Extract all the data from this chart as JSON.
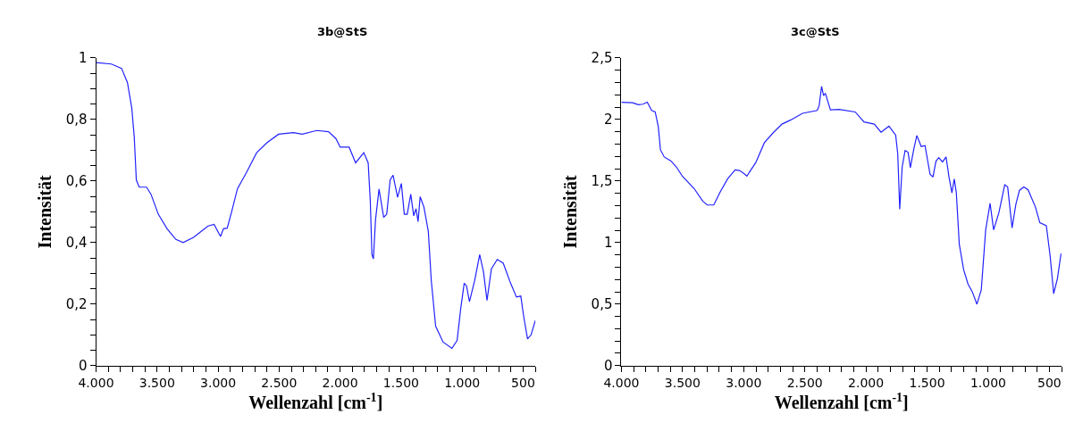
{
  "chart_data": [
    {
      "type": "line",
      "title": "3b@StS",
      "xlabel": "Wellenzahl [cm$^{-1}$]",
      "ylabel": "Intensität",
      "x": [
        4000,
        3875,
        3791,
        3743,
        3707,
        3687,
        3670,
        3646,
        3586,
        3550,
        3490,
        3418,
        3346,
        3286,
        3201,
        3081,
        3033,
        2980,
        2956,
        2925,
        2889,
        2841,
        2768,
        2684,
        2600,
        2504,
        2383,
        2311,
        2191,
        2095,
        2035,
        1999,
        1926,
        1873,
        1806,
        1770,
        1753,
        1739,
        1727,
        1710,
        1681,
        1643,
        1618,
        1590,
        1566,
        1529,
        1498,
        1474,
        1450,
        1421,
        1397,
        1378,
        1361,
        1344,
        1313,
        1277,
        1253,
        1217,
        1157,
        1084,
        1041,
        1012,
        983,
        964,
        940,
        897,
        856,
        825,
        796,
        760,
        712,
        663,
        603,
        555,
        519,
        498,
        464,
        435,
        400
      ],
      "series": [
        {
          "color": "#2222ff",
          "values": [
            0.985,
            0.98,
            0.966,
            0.92,
            0.836,
            0.743,
            0.603,
            0.58,
            0.58,
            0.557,
            0.492,
            0.445,
            0.41,
            0.4,
            0.417,
            0.454,
            0.459,
            0.42,
            0.445,
            0.447,
            0.5,
            0.575,
            0.627,
            0.692,
            0.724,
            0.752,
            0.757,
            0.752,
            0.764,
            0.76,
            0.738,
            0.71,
            0.71,
            0.659,
            0.692,
            0.659,
            0.538,
            0.361,
            0.347,
            0.473,
            0.574,
            0.482,
            0.492,
            0.603,
            0.619,
            0.547,
            0.592,
            0.492,
            0.492,
            0.557,
            0.487,
            0.51,
            0.468,
            0.549,
            0.515,
            0.436,
            0.277,
            0.128,
            0.077,
            0.056,
            0.082,
            0.184,
            0.268,
            0.259,
            0.208,
            0.277,
            0.361,
            0.305,
            0.212,
            0.315,
            0.345,
            0.333,
            0.268,
            0.223,
            0.226,
            0.166,
            0.087,
            0.1,
            0.147
          ]
        }
      ],
      "xlim": [
        4000,
        400
      ],
      "ylim": [
        0,
        1
      ],
      "xticks": [
        {
          "value": 4000,
          "label": "4.000"
        },
        {
          "value": 3900,
          "label": null
        },
        {
          "value": 3800,
          "label": null
        },
        {
          "value": 3700,
          "label": null
        },
        {
          "value": 3600,
          "label": null
        },
        {
          "value": 3500,
          "label": "3.500"
        },
        {
          "value": 3400,
          "label": null
        },
        {
          "value": 3300,
          "label": null
        },
        {
          "value": 3200,
          "label": null
        },
        {
          "value": 3100,
          "label": null
        },
        {
          "value": 3000,
          "label": "3.000"
        },
        {
          "value": 2900,
          "label": null
        },
        {
          "value": 2800,
          "label": null
        },
        {
          "value": 2700,
          "label": null
        },
        {
          "value": 2600,
          "label": null
        },
        {
          "value": 2500,
          "label": "2.500"
        },
        {
          "value": 2400,
          "label": null
        },
        {
          "value": 2300,
          "label": null
        },
        {
          "value": 2200,
          "label": null
        },
        {
          "value": 2100,
          "label": null
        },
        {
          "value": 2000,
          "label": "2.000"
        },
        {
          "value": 1900,
          "label": null
        },
        {
          "value": 1800,
          "label": null
        },
        {
          "value": 1700,
          "label": null
        },
        {
          "value": 1600,
          "label": null
        },
        {
          "value": 1500,
          "label": "1.500"
        },
        {
          "value": 1400,
          "label": null
        },
        {
          "value": 1300,
          "label": null
        },
        {
          "value": 1200,
          "label": null
        },
        {
          "value": 1100,
          "label": null
        },
        {
          "value": 1000,
          "label": "1.000"
        },
        {
          "value": 900,
          "label": null
        },
        {
          "value": 800,
          "label": null
        },
        {
          "value": 700,
          "label": null
        },
        {
          "value": 600,
          "label": null
        },
        {
          "value": 500,
          "label": "500"
        },
        {
          "value": 400,
          "label": null
        }
      ],
      "yticks": [
        0,
        {
          "value": 0.05,
          "label": null
        },
        {
          "value": 0.1,
          "label": null
        },
        {
          "value": 0.15,
          "label": null
        },
        {
          "value": 0.2,
          "label": "0,2"
        },
        {
          "value": 0.25,
          "label": null
        },
        {
          "value": 0.3,
          "label": null
        },
        {
          "value": 0.35,
          "label": null
        },
        {
          "value": 0.4,
          "label": "0,4"
        },
        {
          "value": 0.45,
          "label": null
        },
        {
          "value": 0.5,
          "label": null
        },
        {
          "value": 0.55,
          "label": null
        },
        {
          "value": 0.6,
          "label": "0,6"
        },
        {
          "value": 0.65,
          "label": null
        },
        {
          "value": 0.7,
          "label": null
        },
        {
          "value": 0.75,
          "label": null
        },
        {
          "value": 0.8,
          "label": "0,8"
        },
        {
          "value": 0.85,
          "label": null
        },
        {
          "value": 0.9,
          "label": null
        },
        {
          "value": 0.95,
          "label": null
        },
        1
      ]
    },
    {
      "type": "line",
      "title": "3c@StS",
      "xlabel": "Wellenzahl [cm$^{-1}$]",
      "ylabel": "Intensität",
      "x": [
        4000,
        3909,
        3861,
        3825,
        3789,
        3753,
        3724,
        3698,
        3681,
        3650,
        3597,
        3550,
        3502,
        3406,
        3334,
        3298,
        3245,
        3190,
        3130,
        3070,
        3034,
        2998,
        2974,
        2946,
        2902,
        2831,
        2759,
        2687,
        2615,
        2519,
        2399,
        2383,
        2363,
        2347,
        2332,
        2291,
        2220,
        2088,
        2016,
        1932,
        1877,
        1812,
        1757,
        1740,
        1724,
        1704,
        1680,
        1656,
        1637,
        1608,
        1584,
        1548,
        1517,
        1476,
        1452,
        1428,
        1405,
        1374,
        1345,
        1321,
        1297,
        1278,
        1261,
        1237,
        1201,
        1165,
        1129,
        1093,
        1057,
        1021,
        985,
        956,
        913,
        865,
        841,
        805,
        774,
        745,
        709,
        674,
        614,
        578,
        525,
        494,
        465,
        434,
        405
      ],
      "series": [
        {
          "color": "#2222ff",
          "values": [
            2.14,
            2.136,
            2.12,
            2.124,
            2.14,
            2.073,
            2.061,
            1.938,
            1.753,
            1.695,
            1.664,
            1.613,
            1.539,
            1.439,
            1.335,
            1.305,
            1.305,
            1.416,
            1.52,
            1.59,
            1.585,
            1.56,
            1.539,
            1.583,
            1.648,
            1.811,
            1.892,
            1.962,
            1.996,
            2.05,
            2.073,
            2.112,
            2.268,
            2.194,
            2.212,
            2.078,
            2.082,
            2.061,
            1.98,
            1.962,
            1.896,
            1.945,
            1.873,
            1.718,
            1.27,
            1.613,
            1.748,
            1.734,
            1.609,
            1.764,
            1.869,
            1.78,
            1.787,
            1.555,
            1.532,
            1.66,
            1.69,
            1.655,
            1.695,
            1.532,
            1.404,
            1.516,
            1.404,
            0.987,
            0.778,
            0.662,
            0.597,
            0.499,
            0.615,
            1.103,
            1.318,
            1.103,
            1.242,
            1.469,
            1.451,
            1.119,
            1.311,
            1.423,
            1.451,
            1.428,
            1.288,
            1.161,
            1.137,
            0.894,
            0.585,
            0.708,
            0.91
          ]
        }
      ],
      "xlim": [
        4000,
        400
      ],
      "ylim": [
        0,
        2.5
      ],
      "xticks": [
        {
          "value": 4000,
          "label": "4.000"
        },
        {
          "value": 3900,
          "label": null
        },
        {
          "value": 3800,
          "label": null
        },
        {
          "value": 3700,
          "label": null
        },
        {
          "value": 3600,
          "label": null
        },
        {
          "value": 3500,
          "label": "3.500"
        },
        {
          "value": 3400,
          "label": null
        },
        {
          "value": 3300,
          "label": null
        },
        {
          "value": 3200,
          "label": null
        },
        {
          "value": 3100,
          "label": null
        },
        {
          "value": 3000,
          "label": "3.000"
        },
        {
          "value": 2900,
          "label": null
        },
        {
          "value": 2800,
          "label": null
        },
        {
          "value": 2700,
          "label": null
        },
        {
          "value": 2600,
          "label": null
        },
        {
          "value": 2500,
          "label": "2.500"
        },
        {
          "value": 2400,
          "label": null
        },
        {
          "value": 2300,
          "label": null
        },
        {
          "value": 2200,
          "label": null
        },
        {
          "value": 2100,
          "label": null
        },
        {
          "value": 2000,
          "label": "2.000"
        },
        {
          "value": 1900,
          "label": null
        },
        {
          "value": 1800,
          "label": null
        },
        {
          "value": 1700,
          "label": null
        },
        {
          "value": 1600,
          "label": null
        },
        {
          "value": 1500,
          "label": "1.500"
        },
        {
          "value": 1400,
          "label": null
        },
        {
          "value": 1300,
          "label": null
        },
        {
          "value": 1200,
          "label": null
        },
        {
          "value": 1100,
          "label": null
        },
        {
          "value": 1000,
          "label": "1.000"
        },
        {
          "value": 900,
          "label": null
        },
        {
          "value": 800,
          "label": null
        },
        {
          "value": 700,
          "label": null
        },
        {
          "value": 600,
          "label": null
        },
        {
          "value": 500,
          "label": "500"
        },
        {
          "value": 400,
          "label": null
        }
      ],
      "yticks": [
        0,
        {
          "value": 0.1,
          "label": null
        },
        {
          "value": 0.2,
          "label": null
        },
        {
          "value": 0.3,
          "label": null
        },
        {
          "value": 0.4,
          "label": null
        },
        {
          "value": 0.5,
          "label": "0,5"
        },
        {
          "value": 0.6,
          "label": null
        },
        {
          "value": 0.7,
          "label": null
        },
        {
          "value": 0.8,
          "label": null
        },
        {
          "value": 0.9,
          "label": null
        },
        1,
        {
          "value": 1.1,
          "label": null
        },
        {
          "value": 1.2,
          "label": null
        },
        {
          "value": 1.3,
          "label": null
        },
        {
          "value": 1.4,
          "label": null
        },
        {
          "value": 1.5,
          "label": "1,5"
        },
        {
          "value": 1.6,
          "label": null
        },
        {
          "value": 1.7,
          "label": null
        },
        {
          "value": 1.8,
          "label": null
        },
        {
          "value": 1.9,
          "label": null
        },
        2,
        {
          "value": 2.1,
          "label": null
        },
        {
          "value": 2.2,
          "label": null
        },
        {
          "value": 2.3,
          "label": null
        },
        {
          "value": 2.4,
          "label": null
        },
        {
          "value": 2.5,
          "label": "2,5"
        }
      ]
    }
  ]
}
